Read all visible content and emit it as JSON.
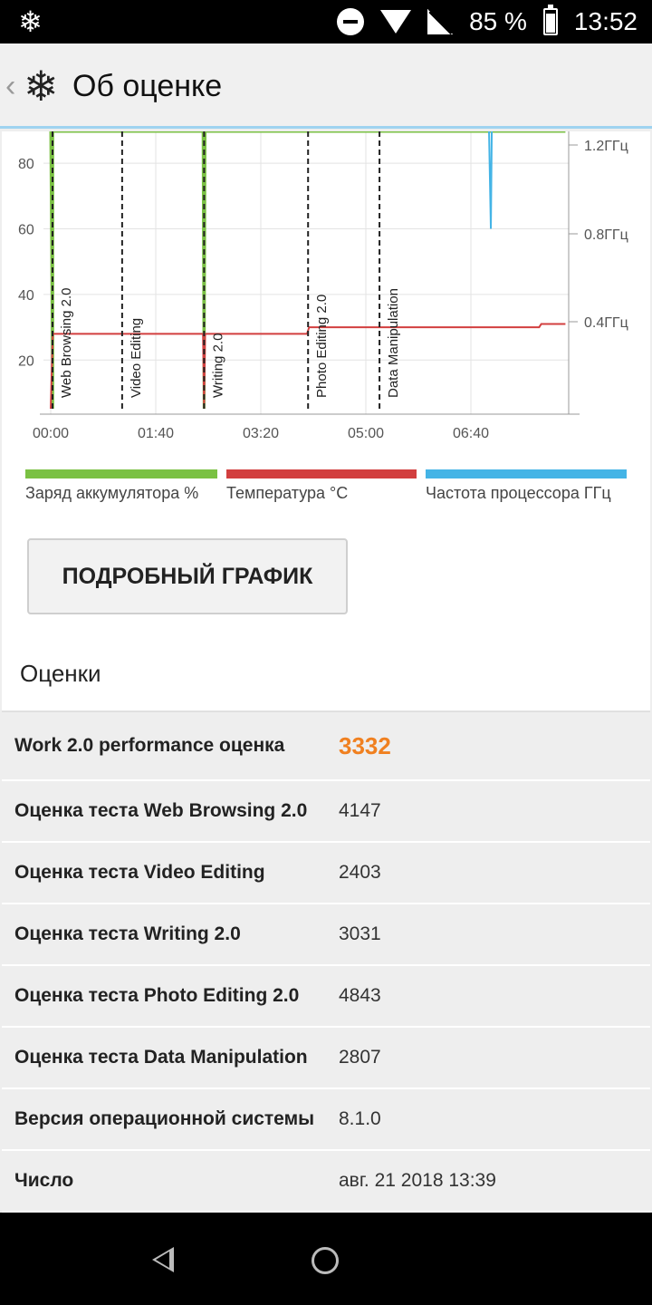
{
  "status_bar": {
    "app_icon": "snowflake-icon",
    "battery": "85 %",
    "time": "13:52"
  },
  "app_bar": {
    "back_glyph": "‹",
    "logo_glyph": "❄",
    "title": "Об оценке"
  },
  "chart_data": {
    "type": "line",
    "x_ticks": [
      "00:00",
      "01:40",
      "03:20",
      "05:00",
      "06:40"
    ],
    "y_left_ticks": [
      "80",
      "60",
      "40",
      "20"
    ],
    "y_right_ticks": [
      "1.2ГГц",
      "0.8ГГц",
      "0.4ГГц"
    ],
    "markers": [
      {
        "label": "Web Browsing 2.0",
        "x": 0
      },
      {
        "label": "Video Editing",
        "x": 68
      },
      {
        "label": "Writing 2.0",
        "x": 146
      },
      {
        "label": "Photo Editing 2.0",
        "x": 245
      },
      {
        "label": "Data Manipulation",
        "x": 313
      }
    ],
    "series": [
      {
        "name": "Заряд аккумулятора %",
        "color": "#7ac143"
      },
      {
        "name": "Температура °C",
        "color": "#d23f3f"
      },
      {
        "name": "Частота процессора ГГц",
        "color": "#44b4e6"
      }
    ]
  },
  "buttons": {
    "detail": "ПОДРОБНЫЙ ГРАФИК"
  },
  "scores": {
    "title": "Оценки",
    "rows": [
      {
        "label": "Work 2.0 performance оценка",
        "value": "3332"
      },
      {
        "label": "Оценка теста Web Browsing 2.0",
        "value": "4147"
      },
      {
        "label": "Оценка теста Video Editing",
        "value": "2403"
      },
      {
        "label": "Оценка теста Writing 2.0",
        "value": "3031"
      },
      {
        "label": "Оценка теста Photo Editing 2.0",
        "value": "4843"
      },
      {
        "label": "Оценка теста Data Manipulation",
        "value": "2807"
      },
      {
        "label": "Версия операционной системы",
        "value": "8.1.0"
      },
      {
        "label": "Число",
        "value": "авг. 21 2018 13:39"
      }
    ]
  }
}
